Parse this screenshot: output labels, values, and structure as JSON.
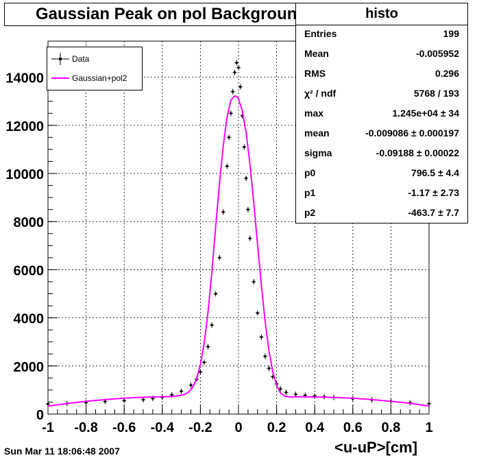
{
  "title": "Gaussian Peak on pol Background",
  "stats": {
    "name": "histo",
    "rows": [
      {
        "key": "Entries",
        "value": "199"
      },
      {
        "key": "Mean",
        "value": "-0.005952"
      },
      {
        "key": "RMS",
        "value": "0.296"
      },
      {
        "key": "χ² / ndf",
        "value": "5768 / 193"
      },
      {
        "key": "max",
        "value": "1.245e+04 ± 34"
      },
      {
        "key": "mean",
        "value": "-0.009086 ± 0.000197"
      },
      {
        "key": "sigma",
        "value": "-0.09188 ± 0.00022"
      },
      {
        "key": "p0",
        "value": "796.5 ± 4.4"
      },
      {
        "key": "p1",
        "value": "-1.17 ± 2.73"
      },
      {
        "key": "p2",
        "value": "-463.7 ± 7.7"
      }
    ]
  },
  "legend": {
    "data_label": "Data",
    "fit_label": "Gaussian+pol2",
    "position": "top-left"
  },
  "footer": {
    "date": "Sun Mar 11 18:06:48 2007"
  },
  "colors": {
    "data": "#000000",
    "fit": "#ff00ff",
    "grid": "#000000"
  },
  "chart_data": {
    "type": "scatter",
    "title": "Gaussian Peak on pol Background",
    "xlabel": "<u-uP>[cm]",
    "ylabel": "",
    "xlim": [
      -1,
      1
    ],
    "ylim": [
      0,
      15500
    ],
    "grid": true,
    "xticks": [
      "-1",
      "-0.8",
      "-0.6",
      "-0.4",
      "-0.2",
      "0",
      "0.2",
      "0.4",
      "0.6",
      "0.8",
      "1"
    ],
    "yticks": [
      "0",
      "2000",
      "4000",
      "6000",
      "8000",
      "10000",
      "12000",
      "14000"
    ],
    "series": [
      {
        "name": "Data",
        "style": "points-with-errors",
        "x": [
          -1.0,
          -0.9,
          -0.8,
          -0.7,
          -0.6,
          -0.5,
          -0.45,
          -0.4,
          -0.35,
          -0.3,
          -0.25,
          -0.22,
          -0.2,
          -0.18,
          -0.16,
          -0.14,
          -0.12,
          -0.1,
          -0.08,
          -0.06,
          -0.05,
          -0.04,
          -0.03,
          -0.02,
          -0.01,
          0.0,
          0.01,
          0.02,
          0.03,
          0.04,
          0.05,
          0.06,
          0.08,
          0.1,
          0.12,
          0.14,
          0.16,
          0.18,
          0.2,
          0.22,
          0.25,
          0.3,
          0.35,
          0.4,
          0.45,
          0.5,
          0.6,
          0.7,
          0.8,
          0.9,
          1.0
        ],
        "y": [
          420,
          440,
          480,
          520,
          560,
          600,
          650,
          700,
          800,
          950,
          1200,
          1450,
          1750,
          2150,
          2800,
          3700,
          5000,
          6500,
          8400,
          10300,
          11500,
          12500,
          13400,
          14200,
          14600,
          14400,
          13600,
          12400,
          11100,
          9800,
          8500,
          7300,
          5500,
          4200,
          3200,
          2400,
          1900,
          1550,
          1250,
          1050,
          900,
          820,
          780,
          750,
          720,
          690,
          640,
          590,
          530,
          470,
          430
        ]
      },
      {
        "name": "Gaussian+pol2",
        "style": "line",
        "x": [
          -1.0,
          -0.9,
          -0.8,
          -0.7,
          -0.6,
          -0.5,
          -0.45,
          -0.4,
          -0.35,
          -0.3,
          -0.28,
          -0.26,
          -0.24,
          -0.22,
          -0.2,
          -0.18,
          -0.16,
          -0.14,
          -0.12,
          -0.1,
          -0.08,
          -0.06,
          -0.04,
          -0.02,
          -0.01,
          0.0,
          0.02,
          0.04,
          0.06,
          0.08,
          0.1,
          0.12,
          0.14,
          0.16,
          0.18,
          0.2,
          0.22,
          0.24,
          0.26,
          0.28,
          0.3,
          0.35,
          0.4,
          0.45,
          0.5,
          0.6,
          0.7,
          0.8,
          0.9,
          1.0
        ],
        "y": [
          330,
          440,
          530,
          600,
          660,
          700,
          710,
          720,
          730,
          780,
          830,
          930,
          1120,
          1470,
          2050,
          2950,
          4230,
          5880,
          7750,
          9580,
          11160,
          12350,
          13050,
          13220,
          13200,
          13100,
          12600,
          11700,
          10400,
          8800,
          7050,
          5350,
          3830,
          2620,
          1760,
          1200,
          880,
          750,
          720,
          710,
          720,
          720,
          710,
          700,
          690,
          660,
          600,
          530,
          450,
          330
        ]
      }
    ]
  }
}
